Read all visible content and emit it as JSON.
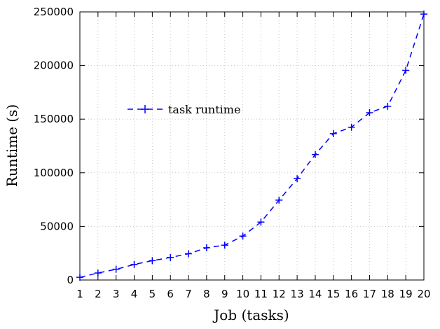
{
  "chart_data": {
    "type": "line",
    "xlabel": "Job (tasks)",
    "ylabel": "Runtime (s)",
    "xlim": [
      1,
      20
    ],
    "ylim": [
      0,
      250000
    ],
    "x_ticks": [
      1,
      2,
      3,
      4,
      5,
      6,
      7,
      8,
      9,
      10,
      11,
      12,
      13,
      14,
      15,
      16,
      17,
      18,
      19,
      20
    ],
    "y_ticks": [
      0,
      50000,
      100000,
      150000,
      200000,
      250000
    ],
    "grid": true,
    "legend_position": "upper-left",
    "series": [
      {
        "name": "task runtime",
        "color": "#0000ff",
        "line_style": "dashed",
        "marker": "plus",
        "x": [
          1,
          2,
          3,
          4,
          5,
          6,
          7,
          8,
          9,
          10,
          11,
          12,
          13,
          14,
          15,
          16,
          17,
          18,
          19,
          20
        ],
        "y": [
          2500,
          6500,
          10000,
          14500,
          18000,
          21000,
          24500,
          30000,
          32500,
          41000,
          54000,
          74500,
          94500,
          117000,
          136500,
          142500,
          156000,
          162000,
          195500,
          248000
        ]
      }
    ]
  }
}
